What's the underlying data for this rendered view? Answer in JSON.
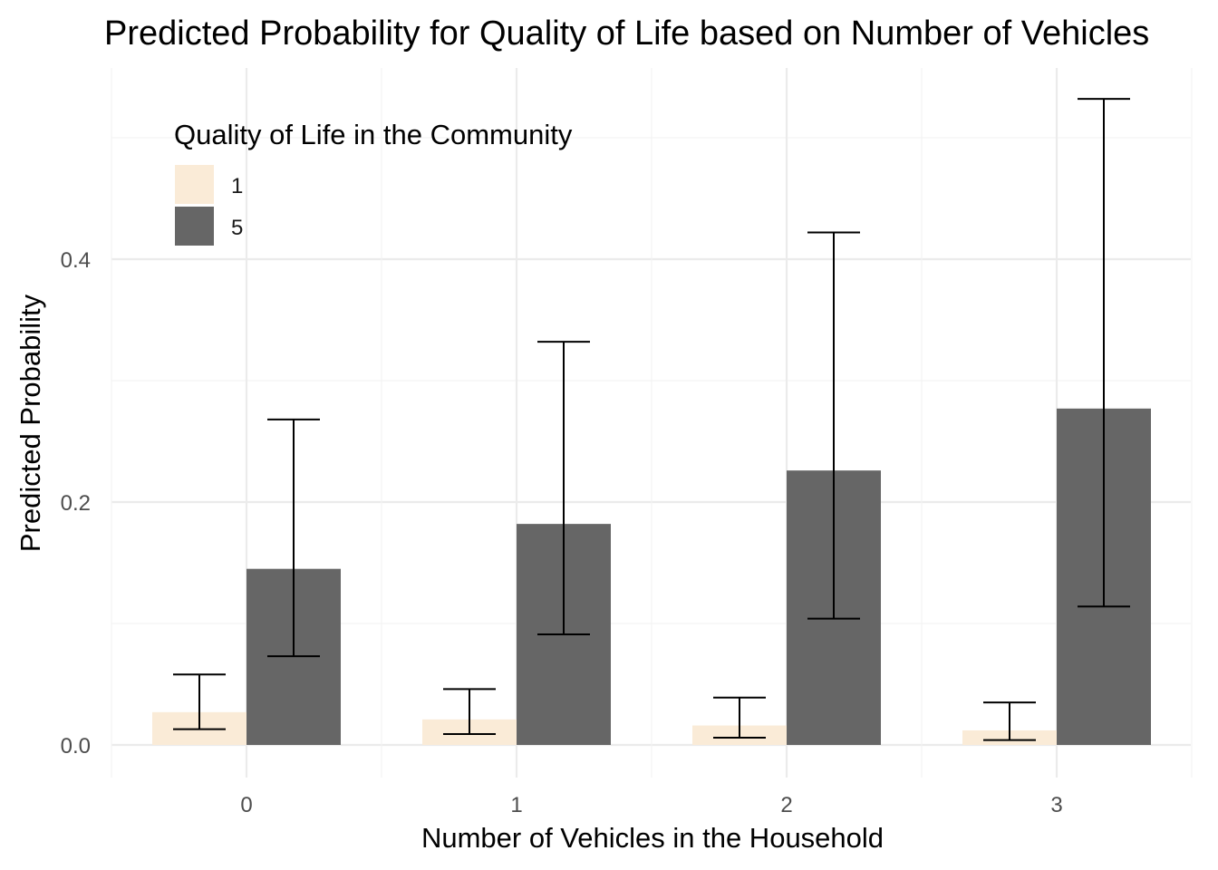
{
  "chart_data": {
    "type": "bar",
    "title": "Predicted Probability for Quality of Life based on Number of Vehicles",
    "xlabel": "Number of Vehicles in the Household",
    "ylabel": "Predicted Probability",
    "categories": [
      "0",
      "1",
      "2",
      "3"
    ],
    "ylim": [
      -0.05,
      0.54
    ],
    "y_ticks": [
      0.0,
      0.2,
      0.4
    ],
    "y_tick_labels": [
      "0.0",
      "0.2",
      "0.4"
    ],
    "grid": true,
    "legend": {
      "title": "Quality of Life in the Community",
      "placement": "top-left"
    },
    "series": [
      {
        "name": "1",
        "color": "#FAEBD7",
        "values": [
          0.027,
          0.021,
          0.016,
          0.012
        ],
        "error_low": [
          0.013,
          0.009,
          0.006,
          0.004
        ],
        "error_high": [
          0.058,
          0.046,
          0.039,
          0.035
        ]
      },
      {
        "name": "5",
        "color": "#666666",
        "values": [
          0.145,
          0.182,
          0.226,
          0.277
        ],
        "error_low": [
          0.073,
          0.091,
          0.104,
          0.114
        ],
        "error_high": [
          0.268,
          0.332,
          0.422,
          0.532
        ]
      }
    ]
  }
}
